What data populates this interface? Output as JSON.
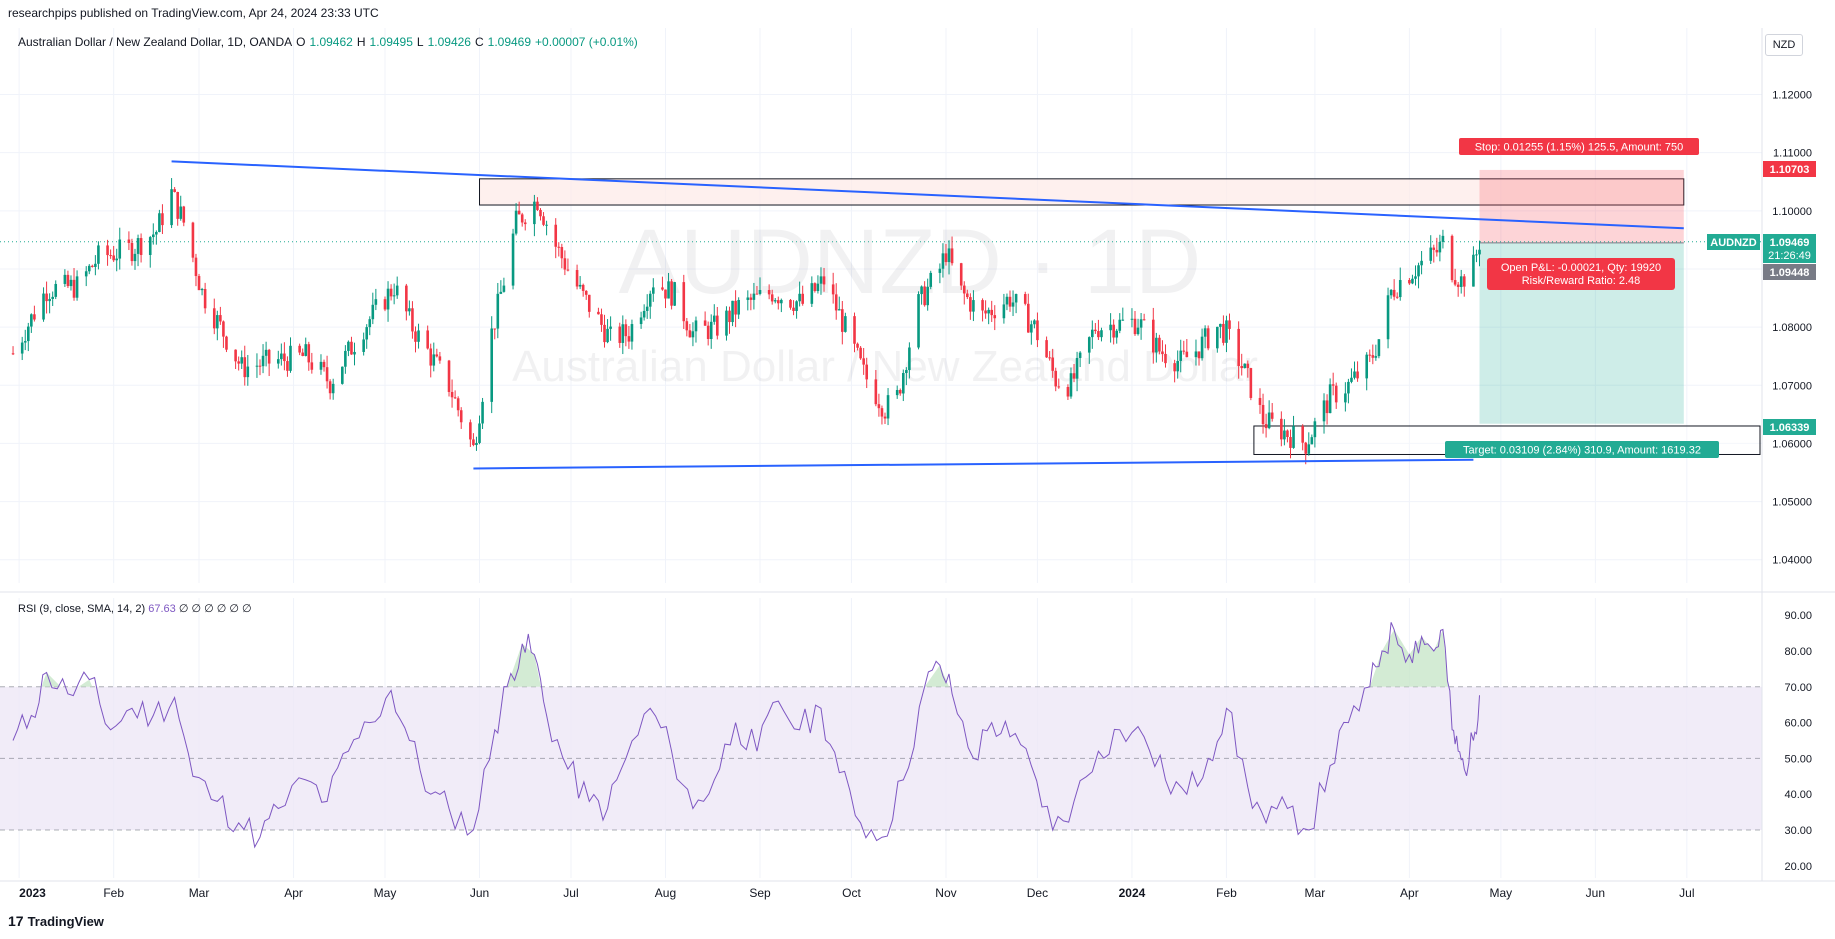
{
  "header": {
    "published": "researchpips published on TradingView.com, Apr 24, 2024 23:33 UTC"
  },
  "legend": {
    "symbol": "Australian Dollar / New Zealand Dollar, 1D, OANDA",
    "o_label": "O",
    "o": "1.09462",
    "h_label": "H",
    "h": "1.09495",
    "l_label": "L",
    "l": "1.09426",
    "c_label": "C",
    "c": "1.09469",
    "change": "+0.00007 (+0.01%)"
  },
  "currency_button": "NZD",
  "watermark": {
    "ticker": "AUDNZD · 1D",
    "name": "Australian Dollar / New Zealand Dollar"
  },
  "rsi_legend": {
    "label": "RSI (9, close, SMA, 14, 2)",
    "value": "67.63",
    "extras": "∅ ∅ ∅ ∅ ∅ ∅"
  },
  "position": {
    "stop_label": "Stop: 0.01255 (1.15%) 125.5, Amount: 750",
    "target_label": "Target: 0.03109 (2.84%) 310.9, Amount: 1619.32",
    "pnl_line1": "Open P&L: -0.00021, Qty: 19920",
    "pnl_line2": "Risk/Reward Ratio: 2.48"
  },
  "price_tags": {
    "stop": "1.10703",
    "symbol_name": "AUDNZD",
    "last": "1.09469",
    "countdown": "21:26:49",
    "entry": "1.09448",
    "target": "1.06339"
  },
  "footer": {
    "brand": "TradingView",
    "logo": "17"
  },
  "chart_data": [
    {
      "type": "candlestick",
      "title": "Australian Dollar / New Zealand Dollar, 1D, OANDA",
      "x_ticks": [
        "2023",
        "Feb",
        "Mar",
        "Apr",
        "May",
        "Jun",
        "Jul",
        "Aug",
        "Sep",
        "Oct",
        "Nov",
        "Dec",
        "2024",
        "Feb",
        "Mar",
        "Apr",
        "May",
        "Jun",
        "Jul"
      ],
      "y_ticks": [
        "1.12000",
        "1.11000",
        "1.10000",
        "1.09000",
        "1.08000",
        "1.07000",
        "1.06000",
        "1.05000",
        "1.04000"
      ],
      "ylim": [
        1.036,
        1.128
      ],
      "x_range": [
        "2022-12-29",
        "2024-07-25"
      ],
      "colors": {
        "up": "#089981",
        "down": "#f23645",
        "trendline": "#2962ff"
      },
      "close_path": [
        [
          "2022-12-30",
          1.0755
        ],
        [
          "2023-01-10",
          1.0865
        ],
        [
          "2023-01-20",
          1.087
        ],
        [
          "2023-01-27",
          1.092
        ],
        [
          "2023-02-07",
          1.0935
        ],
        [
          "2023-02-15",
          1.0965
        ],
        [
          "2023-02-20",
          1.103
        ],
        [
          "2023-02-24",
          1.098
        ],
        [
          "2023-03-02",
          1.086
        ],
        [
          "2023-03-15",
          1.073
        ],
        [
          "2023-03-24",
          1.074
        ],
        [
          "2023-04-05",
          1.075
        ],
        [
          "2023-04-13",
          1.0705
        ],
        [
          "2023-04-24",
          1.08
        ],
        [
          "2023-05-04",
          1.087
        ],
        [
          "2023-05-10",
          1.08
        ],
        [
          "2023-05-22",
          1.07
        ],
        [
          "2023-05-30",
          1.059
        ],
        [
          "2023-06-05",
          1.079
        ],
        [
          "2023-06-09",
          1.088
        ],
        [
          "2023-06-13",
          1.098
        ],
        [
          "2023-06-20",
          1.102
        ],
        [
          "2023-06-26",
          1.094
        ],
        [
          "2023-07-04",
          1.086
        ],
        [
          "2023-07-14",
          1.078
        ],
        [
          "2023-07-20",
          1.079
        ],
        [
          "2023-07-28",
          1.088
        ],
        [
          "2023-08-04",
          1.0855
        ],
        [
          "2023-08-10",
          1.079
        ],
        [
          "2023-08-18",
          1.08
        ],
        [
          "2023-08-25",
          1.0835
        ],
        [
          "2023-09-05",
          1.086
        ],
        [
          "2023-09-15",
          1.084
        ],
        [
          "2023-09-22",
          1.088
        ],
        [
          "2023-09-28",
          1.081
        ],
        [
          "2023-10-05",
          1.072
        ],
        [
          "2023-10-12",
          1.066
        ],
        [
          "2023-10-16",
          1.068
        ],
        [
          "2023-10-23",
          1.084
        ],
        [
          "2023-10-30",
          1.09
        ],
        [
          "2023-11-01",
          1.093
        ],
        [
          "2023-11-06",
          1.086
        ],
        [
          "2023-11-13",
          1.082
        ],
        [
          "2023-11-22",
          1.085
        ],
        [
          "2023-11-30",
          1.08
        ],
        [
          "2023-12-07",
          1.071
        ],
        [
          "2023-12-12",
          1.07
        ],
        [
          "2023-12-20",
          1.08
        ],
        [
          "2024-01-03",
          1.081
        ],
        [
          "2024-01-10",
          1.076
        ],
        [
          "2024-01-17",
          1.074
        ],
        [
          "2024-01-22",
          1.076
        ],
        [
          "2024-01-29",
          1.08
        ],
        [
          "2024-02-01",
          1.079
        ],
        [
          "2024-02-08",
          1.071
        ],
        [
          "2024-02-13",
          1.064
        ],
        [
          "2024-02-20",
          1.062
        ],
        [
          "2024-02-27",
          1.06
        ],
        [
          "2024-03-01",
          1.063
        ],
        [
          "2024-03-06",
          1.068
        ],
        [
          "2024-03-12",
          1.07
        ],
        [
          "2024-03-19",
          1.074
        ],
        [
          "2024-03-22",
          1.078
        ],
        [
          "2024-03-26",
          1.086
        ],
        [
          "2024-03-29",
          1.088
        ],
        [
          "2024-04-05",
          1.091
        ],
        [
          "2024-04-10",
          1.093
        ],
        [
          "2024-04-12",
          1.0945
        ],
        [
          "2024-04-15",
          1.09
        ],
        [
          "2024-04-18",
          1.088
        ],
        [
          "2024-04-22",
          1.0905
        ],
        [
          "2024-04-24",
          1.0947
        ]
      ],
      "resistance_zone": {
        "from": "2023-06-01",
        "to": "2024-06-30",
        "top": 1.1055,
        "bottom": 1.101
      },
      "support_zone": {
        "from": "2024-02-10",
        "to": "2024-07-25",
        "top": 1.063,
        "bottom": 1.0581
      },
      "trendlines": [
        {
          "x1": "2023-02-20",
          "y1": 1.1085,
          "x2": "2024-06-30",
          "y2": 1.097
        },
        {
          "x1": "2023-05-30",
          "y1": 1.0557,
          "x2": "2024-04-22",
          "y2": 1.0572
        }
      ],
      "position": {
        "type": "short",
        "from": "2024-04-24",
        "to": "2024-06-30",
        "entry": 1.09448,
        "stop": 1.10703,
        "target": 1.06339
      },
      "last_price": 1.09469
    },
    {
      "type": "line",
      "title": "RSI (9, close, SMA, 14, 2)",
      "y_ticks": [
        "90.00",
        "80.00",
        "70.00",
        "60.00",
        "50.00",
        "40.00",
        "30.00",
        "20.00"
      ],
      "ylim": [
        18,
        92
      ],
      "band": [
        30,
        70
      ],
      "midline": 50,
      "colors": {
        "line": "#7e57c2",
        "band": "#ede7f6",
        "overbought": "#c8e6c9"
      },
      "points": [
        [
          "2022-12-30",
          55
        ],
        [
          "2023-01-05",
          62
        ],
        [
          "2023-01-10",
          74
        ],
        [
          "2023-01-17",
          68
        ],
        [
          "2023-01-24",
          72
        ],
        [
          "2023-01-31",
          58
        ],
        [
          "2023-02-07",
          64
        ],
        [
          "2023-02-14",
          62
        ],
        [
          "2023-02-21",
          67
        ],
        [
          "2023-02-27",
          45
        ],
        [
          "2023-03-07",
          38
        ],
        [
          "2023-03-14",
          32
        ],
        [
          "2023-03-21",
          28
        ],
        [
          "2023-03-27",
          36
        ],
        [
          "2023-04-05",
          44
        ],
        [
          "2023-04-12",
          38
        ],
        [
          "2023-04-19",
          52
        ],
        [
          "2023-04-26",
          60
        ],
        [
          "2023-05-03",
          69
        ],
        [
          "2023-05-09",
          55
        ],
        [
          "2023-05-16",
          40
        ],
        [
          "2023-05-22",
          36
        ],
        [
          "2023-05-30",
          30
        ],
        [
          "2023-06-06",
          58
        ],
        [
          "2023-06-10",
          70
        ],
        [
          "2023-06-15",
          82
        ],
        [
          "2023-06-19",
          79
        ],
        [
          "2023-06-23",
          62
        ],
        [
          "2023-06-30",
          47
        ],
        [
          "2023-07-07",
          38
        ],
        [
          "2023-07-13",
          36
        ],
        [
          "2023-07-19",
          50
        ],
        [
          "2023-07-27",
          64
        ],
        [
          "2023-08-03",
          52
        ],
        [
          "2023-08-10",
          36
        ],
        [
          "2023-08-17",
          44
        ],
        [
          "2023-08-24",
          60
        ],
        [
          "2023-08-31",
          52
        ],
        [
          "2023-09-07",
          66
        ],
        [
          "2023-09-14",
          58
        ],
        [
          "2023-09-21",
          64
        ],
        [
          "2023-09-27",
          46
        ],
        [
          "2023-10-04",
          32
        ],
        [
          "2023-10-11",
          28
        ],
        [
          "2023-10-18",
          44
        ],
        [
          "2023-10-25",
          70
        ],
        [
          "2023-10-30",
          76
        ],
        [
          "2023-11-03",
          68
        ],
        [
          "2023-11-10",
          50
        ],
        [
          "2023-11-16",
          60
        ],
        [
          "2023-11-22",
          56
        ],
        [
          "2023-11-29",
          48
        ],
        [
          "2023-12-06",
          30
        ],
        [
          "2023-12-13",
          38
        ],
        [
          "2023-12-21",
          52
        ],
        [
          "2023-12-28",
          58
        ],
        [
          "2024-01-05",
          56
        ],
        [
          "2024-01-12",
          44
        ],
        [
          "2024-01-19",
          40
        ],
        [
          "2024-01-26",
          50
        ],
        [
          "2024-02-01",
          64
        ],
        [
          "2024-02-08",
          42
        ],
        [
          "2024-02-14",
          32
        ],
        [
          "2024-02-21",
          36
        ],
        [
          "2024-02-28",
          30
        ],
        [
          "2024-03-06",
          48
        ],
        [
          "2024-03-12",
          60
        ],
        [
          "2024-03-19",
          70
        ],
        [
          "2024-03-23",
          80
        ],
        [
          "2024-03-27",
          86
        ],
        [
          "2024-04-01",
          79
        ],
        [
          "2024-04-05",
          84
        ],
        [
          "2024-04-09",
          80
        ],
        [
          "2024-04-12",
          86
        ],
        [
          "2024-04-15",
          58
        ],
        [
          "2024-04-17",
          52
        ],
        [
          "2024-04-19",
          47
        ],
        [
          "2024-04-22",
          55
        ],
        [
          "2024-04-24",
          67.63
        ]
      ]
    }
  ]
}
